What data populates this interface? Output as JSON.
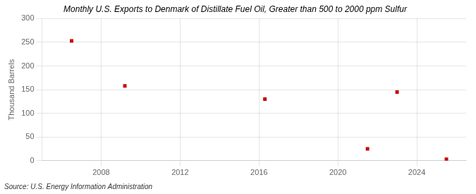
{
  "chart_data": {
    "type": "scatter",
    "title": "Monthly U.S. Exports to Denmark of Distillate Fuel Oil, Greater than 500 to 2000 ppm Sulfur",
    "ylabel": "Thousand Barrels",
    "source": "Source: U.S. Energy Information Administration",
    "x": [
      2006.5,
      2009.2,
      2016.3,
      2021.5,
      2023.0,
      2025.5
    ],
    "values": [
      253,
      158,
      130,
      25,
      145,
      3
    ],
    "color": "#cc0000",
    "marker": "square",
    "xlim": [
      2005.0,
      2026.5
    ],
    "xticks": [
      2008,
      2012,
      2016,
      2020,
      2024
    ],
    "ylim": [
      0,
      300
    ],
    "yticks": [
      0,
      50,
      100,
      150,
      200,
      250,
      300
    ],
    "grid": true
  }
}
